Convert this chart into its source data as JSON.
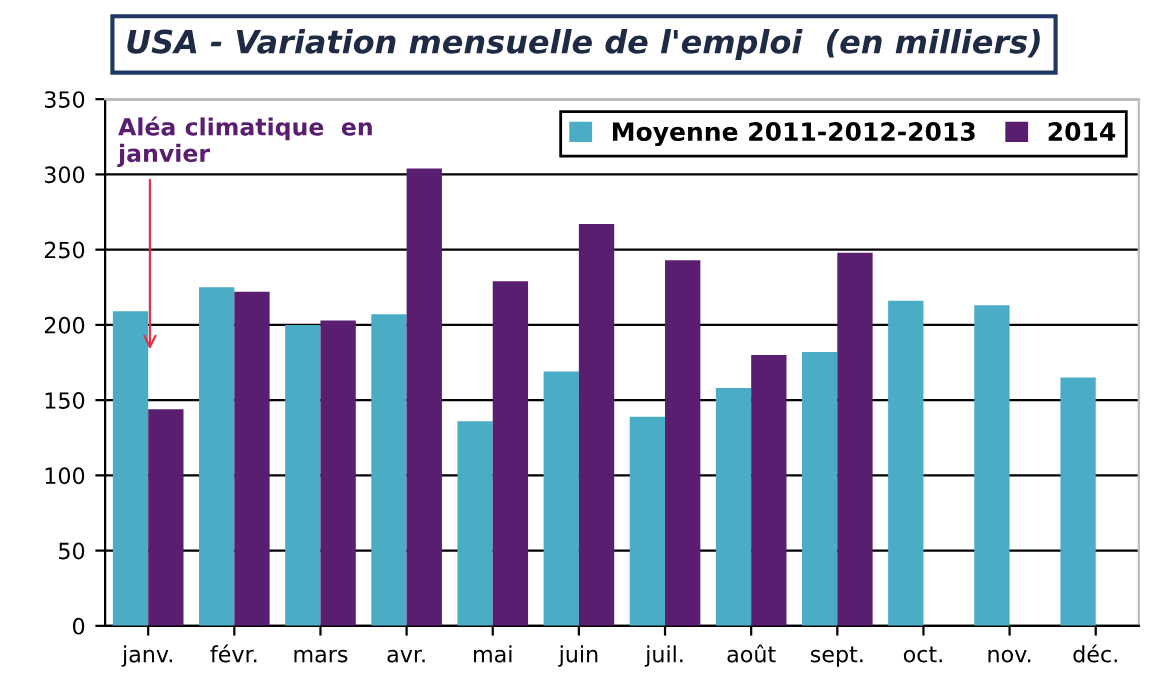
{
  "chart_data": {
    "type": "bar",
    "title": "USA - Variation mensuelle de l'emploi  (en milliers)",
    "categories": [
      "janv.",
      "févr.",
      "mars",
      "avr.",
      "mai",
      "juin",
      "juil.",
      "août",
      "sept.",
      "oct.",
      "nov.",
      "déc."
    ],
    "series": [
      {
        "name": "Moyenne 2011-2012-2013",
        "color": "#4bacc6",
        "values": [
          209,
          225,
          200,
          207,
          136,
          169,
          139,
          158,
          182,
          216,
          213,
          165
        ]
      },
      {
        "name": "2014",
        "color": "#5a1e70",
        "values": [
          144,
          222,
          203,
          304,
          229,
          267,
          243,
          180,
          248,
          null,
          null,
          null
        ]
      }
    ],
    "ylim": [
      0,
      350
    ],
    "yticks": [
      0,
      50,
      100,
      150,
      200,
      250,
      300,
      350
    ],
    "grid": "y",
    "legend": "top right",
    "annotations": [
      {
        "text": "Aléa climatique  en\njanvier",
        "x": "janv.",
        "y": 180
      }
    ]
  }
}
